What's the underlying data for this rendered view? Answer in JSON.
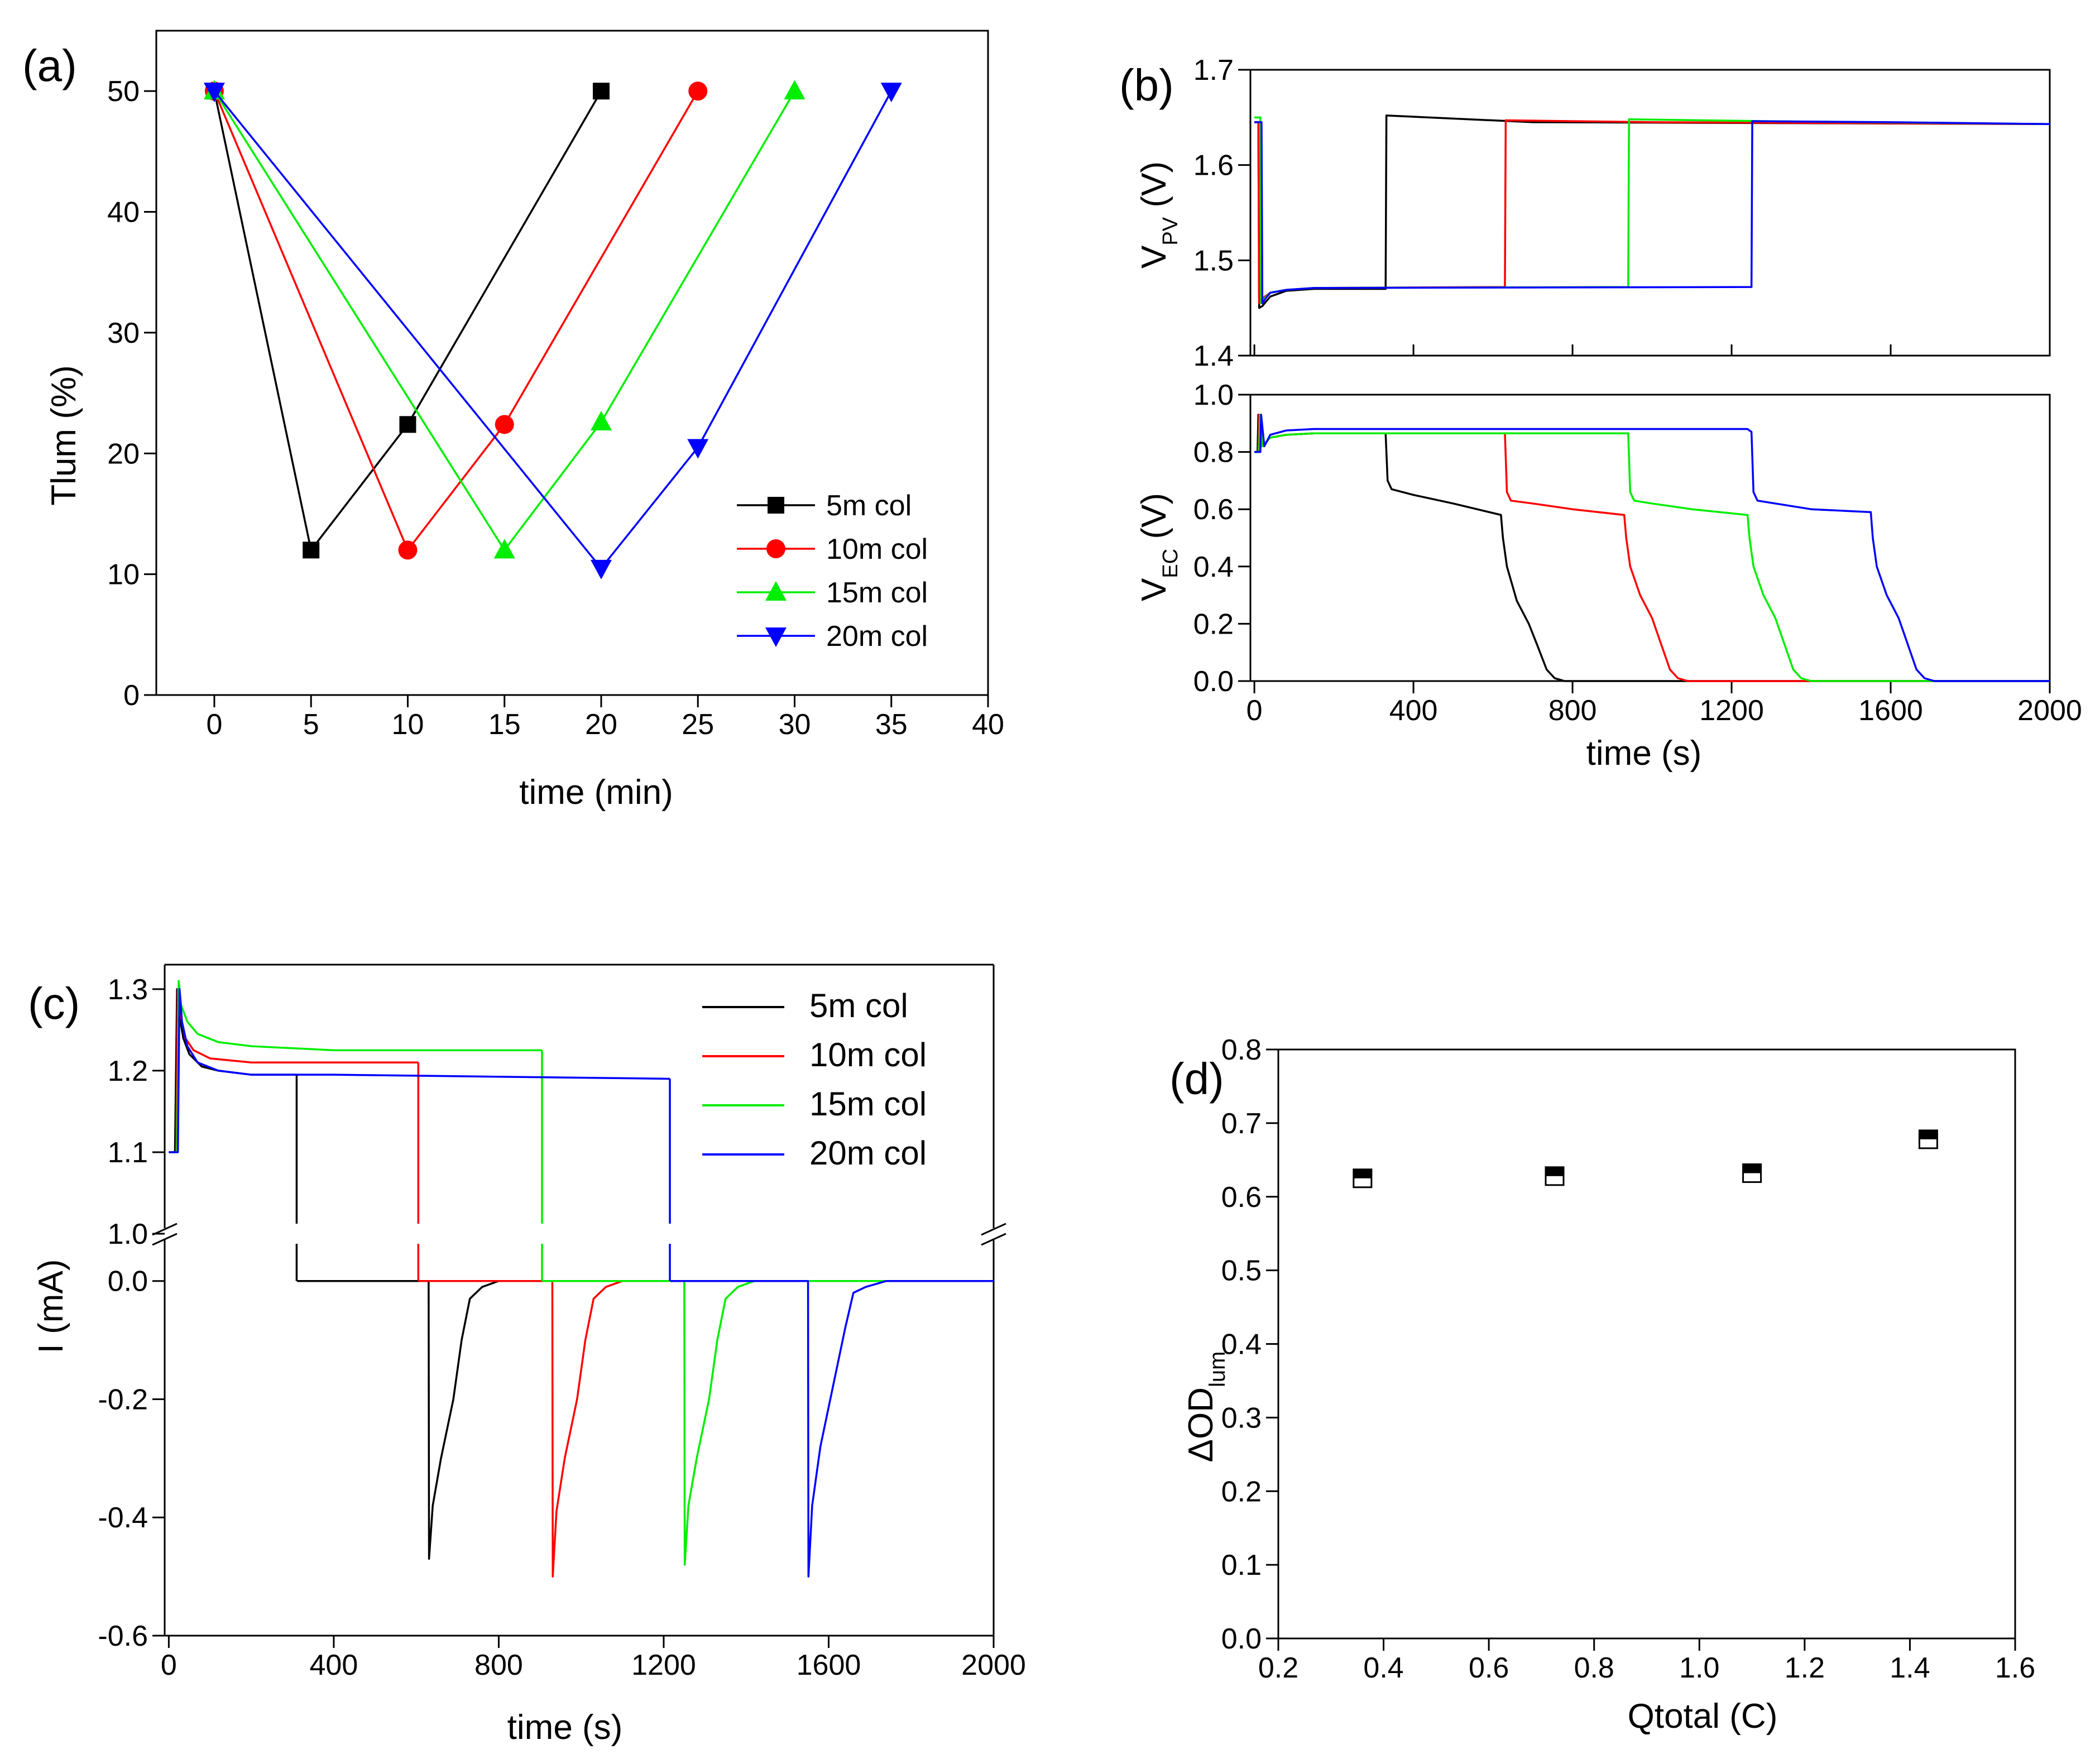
{
  "colors": {
    "black": "#000000",
    "red": "#ff0000",
    "green": "#00ee00",
    "blue": "#0000ff"
  },
  "chart_data": [
    {
      "id": "a",
      "panel_label": "(a)",
      "type": "line",
      "xlabel": "time (min)",
      "ylabel": "Tlum (%)",
      "xlim": [
        -3,
        40
      ],
      "ylim": [
        0,
        55
      ],
      "xticks": [
        0,
        5,
        10,
        15,
        20,
        25,
        30,
        35,
        40
      ],
      "yticks": [
        0,
        10,
        20,
        30,
        40,
        50
      ],
      "legend_position": "bottom-right",
      "series": [
        {
          "name": "5m col",
          "color": "#000000",
          "marker": "square",
          "x": [
            0,
            5,
            10,
            20
          ],
          "y": [
            50,
            12,
            22.4,
            50
          ]
        },
        {
          "name": "10m col",
          "color": "#ff0000",
          "marker": "circle",
          "x": [
            0,
            10,
            15,
            25
          ],
          "y": [
            50,
            12,
            22.4,
            50
          ]
        },
        {
          "name": "15m col",
          "color": "#00ee00",
          "marker": "triangle-up",
          "x": [
            0,
            15,
            20,
            30
          ],
          "y": [
            50,
            12,
            22.6,
            50
          ]
        },
        {
          "name": "20m col",
          "color": "#0000ff",
          "marker": "triangle-down",
          "x": [
            0,
            20,
            25,
            35
          ],
          "y": [
            50,
            10.5,
            20.5,
            50
          ]
        }
      ]
    },
    {
      "id": "b",
      "panel_label": "(b)",
      "type": "line",
      "xlabel": "time (s)",
      "xlim": [
        -10,
        2000
      ],
      "xticks": [
        0,
        400,
        800,
        1200,
        1600,
        2000
      ],
      "top": {
        "ylabel_main": "V",
        "ylabel_sub": "PV",
        "ylabel_unit": " (V)",
        "ylim": [
          1.4,
          1.7
        ],
        "yticks": [
          1.4,
          1.5,
          1.6,
          1.7
        ],
        "series": [
          {
            "name": "5m col",
            "color": "#000000",
            "x": [
              0,
              10,
              12,
              20,
              40,
              80,
              150,
              330,
              332,
              700,
              2000
            ],
            "y": [
              1.645,
              1.645,
              1.45,
              1.452,
              1.462,
              1.468,
              1.47,
              1.47,
              1.652,
              1.645,
              1.643
            ]
          },
          {
            "name": "10m col",
            "color": "#ff0000",
            "x": [
              0,
              10,
              12,
              20,
              40,
              80,
              150,
              630,
              632,
              1000,
              2000
            ],
            "y": [
              1.645,
              1.645,
              1.455,
              1.46,
              1.466,
              1.469,
              1.471,
              1.472,
              1.647,
              1.645,
              1.643
            ]
          },
          {
            "name": "15m col",
            "color": "#00ee00",
            "x": [
              0,
              15,
              17,
              25,
              40,
              80,
              150,
              940,
              942,
              1300,
              2000
            ],
            "y": [
              1.65,
              1.65,
              1.455,
              1.46,
              1.466,
              1.469,
              1.471,
              1.472,
              1.648,
              1.646,
              1.643
            ]
          },
          {
            "name": "20m col",
            "color": "#0000ff",
            "x": [
              0,
              18,
              20,
              28,
              40,
              80,
              150,
              1250,
              1252,
              1600,
              2000
            ],
            "y": [
              1.645,
              1.645,
              1.455,
              1.46,
              1.466,
              1.469,
              1.471,
              1.472,
              1.646,
              1.645,
              1.643
            ]
          }
        ]
      },
      "bottom": {
        "ylabel_main": "V",
        "ylabel_sub": "EC",
        "ylabel_unit": " (V)",
        "ylim": [
          0,
          1.0
        ],
        "yticks": [
          0.0,
          0.2,
          0.4,
          0.6,
          0.8,
          1.0
        ],
        "series": [
          {
            "name": "5m col",
            "color": "#000000",
            "x": [
              0,
              8,
              10,
              20,
              40,
              80,
              150,
              330,
              335,
              345,
              400,
              500,
              620,
              625,
              635,
              660,
              690,
              710,
              735,
              755,
              780,
              2000
            ],
            "y": [
              0.8,
              0.8,
              0.93,
              0.82,
              0.85,
              0.86,
              0.865,
              0.865,
              0.7,
              0.67,
              0.65,
              0.62,
              0.58,
              0.5,
              0.4,
              0.28,
              0.2,
              0.13,
              0.04,
              0.01,
              0.0,
              0.0
            ]
          },
          {
            "name": "10m col",
            "color": "#ff0000",
            "x": [
              0,
              10,
              12,
              20,
              40,
              80,
              150,
              630,
              635,
              645,
              700,
              800,
              930,
              935,
              945,
              970,
              1000,
              1020,
              1045,
              1065,
              1090,
              2000
            ],
            "y": [
              0.8,
              0.8,
              0.93,
              0.82,
              0.85,
              0.86,
              0.865,
              0.865,
              0.66,
              0.63,
              0.62,
              0.6,
              0.58,
              0.5,
              0.4,
              0.3,
              0.22,
              0.14,
              0.04,
              0.01,
              0.0,
              0.0
            ]
          },
          {
            "name": "15m col",
            "color": "#00ee00",
            "x": [
              0,
              12,
              14,
              20,
              40,
              80,
              150,
              940,
              945,
              955,
              1000,
              1100,
              1240,
              1245,
              1255,
              1280,
              1310,
              1330,
              1355,
              1375,
              1400,
              2000
            ],
            "y": [
              0.8,
              0.8,
              0.93,
              0.82,
              0.85,
              0.86,
              0.865,
              0.865,
              0.66,
              0.63,
              0.62,
              0.6,
              0.58,
              0.5,
              0.4,
              0.3,
              0.22,
              0.14,
              0.04,
              0.01,
              0.0,
              0.0
            ]
          },
          {
            "name": "20m col",
            "color": "#0000ff",
            "x": [
              0,
              15,
              17,
              25,
              40,
              80,
              150,
              1240,
              1250,
              1255,
              1265,
              1310,
              1400,
              1550,
              1555,
              1565,
              1590,
              1620,
              1640,
              1665,
              1685,
              1710,
              2000
            ],
            "y": [
              0.8,
              0.8,
              0.93,
              0.82,
              0.86,
              0.875,
              0.88,
              0.88,
              0.87,
              0.66,
              0.63,
              0.62,
              0.6,
              0.59,
              0.5,
              0.4,
              0.3,
              0.22,
              0.14,
              0.04,
              0.01,
              0.0,
              0.0
            ]
          }
        ]
      }
    },
    {
      "id": "c",
      "panel_label": "(c)",
      "type": "line",
      "xlabel": "time (s)",
      "ylabel": "I (mA)",
      "xlim": [
        -10,
        2000
      ],
      "xticks": [
        0,
        400,
        800,
        1200,
        1600,
        2000
      ],
      "axis_break": true,
      "top_ylim": [
        1.0,
        1.33
      ],
      "top_yticks": [
        1.0,
        1.1,
        1.2,
        1.3
      ],
      "bottom_ylim": [
        -0.6,
        0.08
      ],
      "bottom_yticks": [
        -0.6,
        -0.4,
        -0.2,
        0.0
      ],
      "legend_position": "top-right",
      "series": [
        {
          "name": "5m col",
          "color": "#000000",
          "x": [
            0,
            15,
            20,
            25,
            35,
            50,
            80,
            120,
            200,
            310,
            311,
            630,
            631,
            640,
            660,
            690,
            710,
            730,
            760,
            800,
            2000
          ],
          "y": [
            1.1,
            1.1,
            1.3,
            1.27,
            1.24,
            1.22,
            1.205,
            1.2,
            1.195,
            1.195,
            0.0,
            0.0,
            -0.47,
            -0.38,
            -0.3,
            -0.2,
            -0.1,
            -0.03,
            -0.01,
            0.0,
            0.0
          ]
        },
        {
          "name": "10m col",
          "color": "#ff0000",
          "x": [
            0,
            18,
            22,
            28,
            40,
            60,
            100,
            200,
            300,
            605,
            606,
            930,
            931,
            940,
            960,
            990,
            1010,
            1030,
            1060,
            1100,
            2000
          ],
          "y": [
            1.1,
            1.1,
            1.3,
            1.27,
            1.24,
            1.225,
            1.215,
            1.21,
            1.21,
            1.21,
            0.0,
            0.0,
            -0.5,
            -0.39,
            -0.3,
            -0.2,
            -0.1,
            -0.03,
            -0.01,
            0.0,
            0.0
          ]
        },
        {
          "name": "15m col",
          "color": "#00ee00",
          "x": [
            0,
            20,
            24,
            30,
            45,
            70,
            120,
            200,
            400,
            905,
            906,
            1250,
            1251,
            1260,
            1280,
            1310,
            1330,
            1350,
            1380,
            1420,
            2000
          ],
          "y": [
            1.1,
            1.1,
            1.31,
            1.28,
            1.26,
            1.245,
            1.235,
            1.23,
            1.225,
            1.225,
            0.0,
            0.0,
            -0.48,
            -0.38,
            -0.3,
            -0.2,
            -0.1,
            -0.03,
            -0.01,
            0.0,
            0.0
          ]
        },
        {
          "name": "20m col",
          "color": "#0000ff",
          "x": [
            0,
            22,
            26,
            32,
            45,
            70,
            120,
            200,
            400,
            1215,
            1216,
            1550,
            1551,
            1560,
            1580,
            1610,
            1640,
            1660,
            1690,
            1740,
            2000
          ],
          "y": [
            1.1,
            1.1,
            1.3,
            1.26,
            1.23,
            1.21,
            1.2,
            1.195,
            1.195,
            1.19,
            0.0,
            0.0,
            -0.5,
            -0.38,
            -0.28,
            -0.18,
            -0.08,
            -0.02,
            -0.01,
            0.0,
            0.0
          ]
        }
      ]
    },
    {
      "id": "d",
      "panel_label": "(d)",
      "type": "scatter",
      "xlabel": "Qtotal (C)",
      "ylabel_main": "ΔOD",
      "ylabel_sub": "lum",
      "xlim": [
        0.2,
        1.6
      ],
      "ylim": [
        0.0,
        0.8
      ],
      "xticks": [
        0.2,
        0.4,
        0.6,
        0.8,
        1.0,
        1.2,
        1.4,
        1.6
      ],
      "yticks": [
        0.0,
        0.1,
        0.2,
        0.3,
        0.4,
        0.5,
        0.6,
        0.7,
        0.8
      ],
      "marker": "half-filled-square",
      "points": [
        {
          "x": 0.36,
          "y": 0.625
        },
        {
          "x": 0.725,
          "y": 0.628
        },
        {
          "x": 1.1,
          "y": 0.632
        },
        {
          "x": 1.435,
          "y": 0.678
        }
      ]
    }
  ]
}
